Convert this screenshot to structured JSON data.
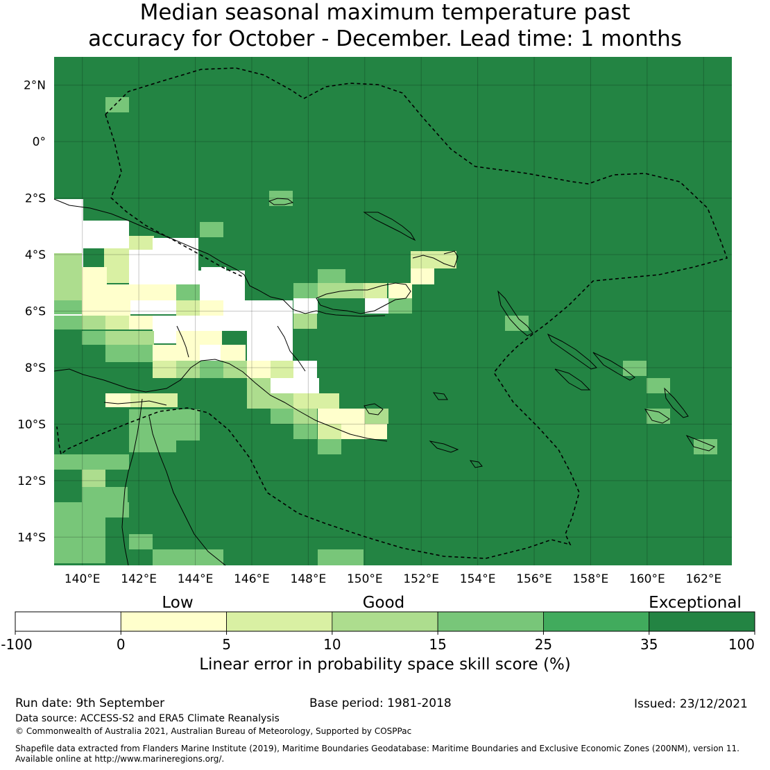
{
  "title_line1": "Median seasonal maximum temperature past",
  "title_line2": "accuracy for October - December. Lead time: 1 months",
  "map": {
    "lon_range": [
      139,
      163
    ],
    "lat_range": [
      -15,
      3
    ],
    "lon_ticks": [
      "140°E",
      "142°E",
      "144°E",
      "146°E",
      "148°E",
      "150°E",
      "152°E",
      "154°E",
      "156°E",
      "158°E",
      "160°E",
      "162°E"
    ],
    "lat_ticks": [
      "2°N",
      "0°",
      "2°S",
      "4°S",
      "6°S",
      "8°S",
      "10°S",
      "12°S",
      "14°S"
    ],
    "background_color": "#238443",
    "boundary_style": "dashed"
  },
  "legend": {
    "category_labels": [
      "Low",
      "Good",
      "Exceptional"
    ],
    "tick_labels": [
      "-100",
      "0",
      "5",
      "10",
      "15",
      "25",
      "35",
      "100"
    ],
    "colors": [
      "#ffffff",
      "#ffffcc",
      "#d9f0a3",
      "#addd8e",
      "#78c679",
      "#41ab5d",
      "#238443"
    ],
    "axis_label": "Linear error in probability space skill score (%)"
  },
  "footer": {
    "run_date": "Run date: 9th September",
    "base_period": "Base period: 1981-2018",
    "issued": "Issued: 23/12/2021",
    "data_source": "Data source: ACCESS-S2 and ERA5 Climate Reanalysis",
    "copyright": "© Commonwealth of Australia 2021, Australian Bureau of Meteorology, Supported by COSPPac",
    "shapefile_line1": "Shapefile data extracted from Flanders Marine Institute (2019), Maritime Boundaries Geodatabase: Maritime Boundaries and Exclusive Economic Zones (200NM), version 11.",
    "shapefile_line2": "Available online at http://www.marineregions.org/."
  }
}
